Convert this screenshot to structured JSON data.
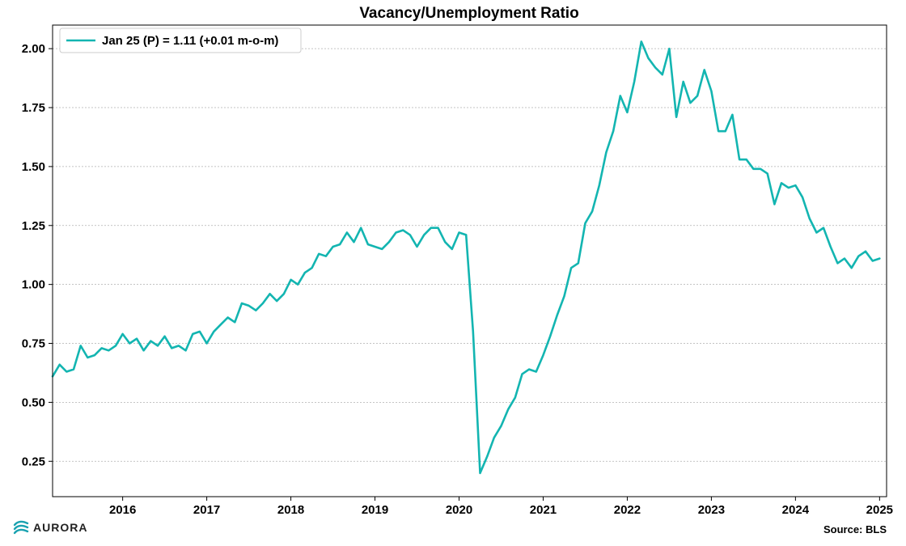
{
  "chart_data": {
    "type": "line",
    "title": "Vacancy/Unemployment Ratio",
    "xlabel": "",
    "ylabel": "",
    "x_start": "2015-03",
    "xlim": [
      "2015-03",
      "2025-02"
    ],
    "ylim": [
      0.1,
      2.1
    ],
    "x_ticks": [
      "2016",
      "2017",
      "2018",
      "2019",
      "2020",
      "2021",
      "2022",
      "2023",
      "2024",
      "2025"
    ],
    "y_ticks": [
      "0.25",
      "0.50",
      "0.75",
      "1.00",
      "1.25",
      "1.50",
      "1.75",
      "2.00"
    ],
    "grid": "horizontal dashed",
    "legend_position": "top-left",
    "series": [
      {
        "name": "Jan 25 (P) = 1.11 (+0.01 m-o-m)",
        "color": "#13b5b1",
        "values": [
          0.61,
          0.66,
          0.63,
          0.64,
          0.74,
          0.69,
          0.7,
          0.73,
          0.72,
          0.74,
          0.79,
          0.75,
          0.77,
          0.72,
          0.76,
          0.74,
          0.78,
          0.73,
          0.74,
          0.72,
          0.79,
          0.8,
          0.75,
          0.8,
          0.83,
          0.86,
          0.84,
          0.92,
          0.91,
          0.89,
          0.92,
          0.96,
          0.93,
          0.96,
          1.02,
          1.0,
          1.05,
          1.07,
          1.13,
          1.12,
          1.16,
          1.17,
          1.22,
          1.18,
          1.24,
          1.17,
          1.16,
          1.15,
          1.18,
          1.22,
          1.23,
          1.21,
          1.16,
          1.21,
          1.24,
          1.24,
          1.18,
          1.15,
          1.22,
          1.21,
          0.8,
          0.2,
          0.27,
          0.35,
          0.4,
          0.47,
          0.52,
          0.62,
          0.64,
          0.63,
          0.7,
          0.78,
          0.87,
          0.95,
          1.07,
          1.09,
          1.26,
          1.31,
          1.42,
          1.56,
          1.65,
          1.8,
          1.73,
          1.86,
          2.03,
          1.96,
          1.92,
          1.89,
          2.0,
          1.71,
          1.86,
          1.77,
          1.8,
          1.91,
          1.82,
          1.65,
          1.65,
          1.72,
          1.53,
          1.53,
          1.49,
          1.49,
          1.47,
          1.34,
          1.43,
          1.41,
          1.42,
          1.37,
          1.28,
          1.22,
          1.24,
          1.16,
          1.09,
          1.11,
          1.07,
          1.12,
          1.14,
          1.1,
          1.11
        ]
      }
    ]
  },
  "footer": {
    "source": "Source: BLS",
    "brand": "AURORA"
  },
  "colors": {
    "line": "#13b5b1",
    "grid": "#b0b0b0",
    "brand": "#1aa2b0"
  }
}
